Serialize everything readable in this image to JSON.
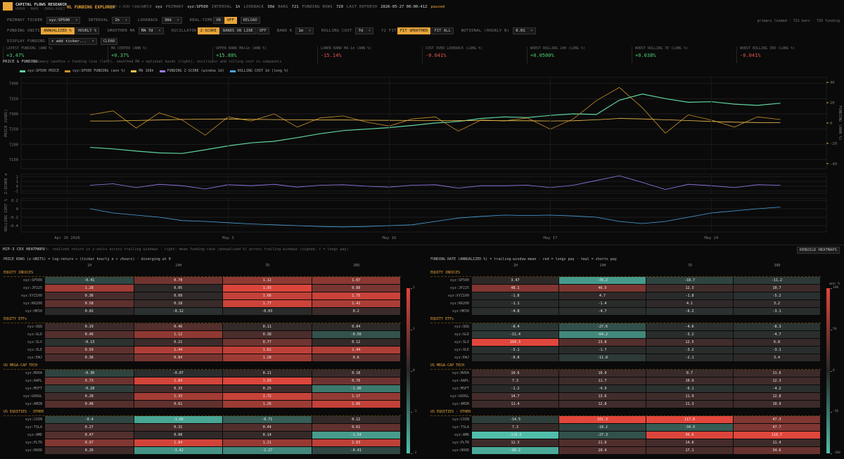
{
  "header": {
    "brand": "CAPITAL FLOWS RESEARCH",
    "tagline": "HYPER · MAPS · CROSS-ASSET",
    "app": "HL FUNDING EXPLORER",
    "app_note": "HIP-3 PERP FUNDING",
    "status": [
      {
        "label": "PCX",
        "value": "xyz"
      },
      {
        "label": "PRIMARY",
        "value": "xyz:SP500"
      },
      {
        "label": "INTERVAL",
        "value": "1h"
      },
      {
        "label": "LOOKBACK",
        "value": "30d"
      },
      {
        "label": "BARS",
        "value": "721"
      },
      {
        "label": "FUNDING ROWS",
        "value": "720"
      },
      {
        "label": "LAST REFRESH",
        "value": "2026-05-27 00:00:41Z"
      }
    ],
    "state": "paused"
  },
  "controls": {
    "rows": [
      [
        {
          "label": "PRIMARY TICKER",
          "value": "xyz:SP500"
        },
        {
          "label": "INTERVAL",
          "value": "1h"
        },
        {
          "label": "LOOKBACK",
          "value": "30d"
        },
        {
          "label": "REAL-TIME",
          "toggle": [
            "ON",
            "OFF"
          ],
          "selected": 1
        },
        {
          "button": "RELOAD"
        }
      ],
      [
        {
          "label": "FUNDING UNITS",
          "toggle": [
            "ANNUALIZED %",
            "HOURLY %"
          ],
          "selected": 0
        },
        {
          "label": "SMOOTHER MA",
          "value": "MA 7d"
        },
        {
          "label": "OSCILLATOR",
          "toggle": [
            "Z-SCORE",
            "BANDS ON LINE",
            "OFF"
          ],
          "selected": 0
        },
        {
          "label": "BAND K",
          "value": "1σ"
        },
        {
          "label": "ROLLING COST",
          "value": "7d"
        },
        {
          "label": "Y2 FIT",
          "toggle": [
            "FIT SMOOTHED",
            "FIT ALL"
          ],
          "selected": 0
        },
        {
          "label": "NOTIONAL (HOURLY N)",
          "value": "0.01"
        }
      ],
      [
        {
          "label": "DISPLAY FUNDING",
          "value": "+ add ticker..."
        },
        {
          "button": "CLEAR"
        }
      ]
    ],
    "status_right": "primary loaded · 721 bars · 720 funding"
  },
  "stats": [
    {
      "label": "LATEST FUNDING (ANN %)",
      "value": "+3.47%"
    },
    {
      "label": "MA CENTER (ANN %)",
      "value": "+0.37%"
    },
    {
      "label": "UPPER BAND MA+1σ (ANN %)",
      "value": "+15.88%"
    },
    {
      "label": "LOWER BAND MA-1σ (ANN %)",
      "value": "-15.14%"
    },
    {
      "label": "COST OVER LOOKBACK (LONG %)",
      "value": "-0.041%"
    },
    {
      "label": "WORST ROLLING 24H (LONG %)",
      "value": "+0.0500%"
    },
    {
      "label": "WORST ROLLING 7D (LONG %)",
      "value": "+0.038%"
    },
    {
      "label": "WORST ROLLING 30D (LONG %)",
      "value": "-0.041%"
    }
  ],
  "chart_section": {
    "title": "PRICE & FUNDING",
    "description": "primary candles + funding line (left), smoothed MA + optional bands (right), oscillator and rolling cost in subpanels",
    "legend": [
      "xyz:SP500 PRICE",
      "xyz:SP500 FUNDING (ann %)",
      "MA 168h",
      "FUNDING Z-SCORE (window 1d)",
      "ROLLING COST 1d (long %)"
    ]
  },
  "chart_data": [
    {
      "type": "line",
      "ylabel": "PRICE (USDC)",
      "y2label": "FUNDING (ANN %)",
      "x": [
        "2026-04-27",
        "2026-04-28",
        "2026-04-29",
        "2026-04-30",
        "2026-05-01",
        "2026-05-02",
        "2026-05-03",
        "2026-05-04",
        "2026-05-05",
        "2026-05-06",
        "2026-05-07",
        "2026-05-08",
        "2026-05-09",
        "2026-05-10",
        "2026-05-11",
        "2026-05-12",
        "2026-05-13",
        "2026-05-14",
        "2026-05-15",
        "2026-05-16",
        "2026-05-17",
        "2026-05-18",
        "2026-05-19",
        "2026-05-20",
        "2026-05-21",
        "2026-05-22",
        "2026-05-23",
        "2026-05-24",
        "2026-05-25",
        "2026-05-26",
        "2026-05-27"
      ],
      "xlim": [
        "2026-04-24",
        "2026-05-29"
      ],
      "ylim": [
        7120,
        7420
      ],
      "yticks": [
        7150,
        7200,
        7250,
        7300,
        7350,
        7400
      ],
      "y2lim": [
        -45,
        45
      ],
      "y2ticks": [
        -40,
        -20,
        0,
        20,
        40
      ],
      "grid": true,
      "series": [
        {
          "name": "xyz:SP500 PRICE",
          "color": "#5fd3a0",
          "values": [
            7190,
            7185,
            7178,
            7172,
            7170,
            7182,
            7195,
            7205,
            7210,
            7222,
            7235,
            7245,
            7250,
            7255,
            7262,
            7270,
            7275,
            7285,
            7290,
            7288,
            7295,
            7300,
            7298,
            7345,
            7365,
            7350,
            7338,
            7340,
            7332,
            7328,
            7335
          ]
        },
        {
          "name": "xyz:SP500 FUNDING (ann %)",
          "color": "#c8902a",
          "axis": "y2",
          "values": [
            8,
            12,
            -5,
            10,
            3,
            -12,
            6,
            2,
            9,
            -4,
            5,
            7,
            1,
            -3,
            4,
            6,
            -8,
            3,
            2,
            5,
            -6,
            4,
            22,
            35,
            15,
            -10,
            8,
            3,
            -4,
            6,
            3.47
          ]
        },
        {
          "name": "MA 168h",
          "color": "#f2c14e",
          "axis": "y2",
          "values": [
            2,
            2,
            2.5,
            3,
            3.5,
            3.8,
            4,
            3.6,
            3.4,
            3.2,
            3,
            3,
            2.8,
            2.6,
            2.5,
            2.4,
            2.3,
            2.4,
            2.3,
            2.2,
            2,
            2.2,
            3.2,
            4.5,
            4,
            3.2,
            2.4,
            1.5,
            0.8,
            0.5,
            0.37
          ]
        }
      ]
    },
    {
      "type": "line",
      "ylabel": "Z-SCORE σ",
      "x": [
        "2026-04-27",
        "2026-04-28",
        "2026-04-29",
        "2026-04-30",
        "2026-05-01",
        "2026-05-02",
        "2026-05-03",
        "2026-05-04",
        "2026-05-05",
        "2026-05-06",
        "2026-05-07",
        "2026-05-08",
        "2026-05-09",
        "2026-05-10",
        "2026-05-11",
        "2026-05-12",
        "2026-05-13",
        "2026-05-14",
        "2026-05-15",
        "2026-05-16",
        "2026-05-17",
        "2026-05-18",
        "2026-05-19",
        "2026-05-20",
        "2026-05-21",
        "2026-05-22",
        "2026-05-23",
        "2026-05-24",
        "2026-05-25",
        "2026-05-26",
        "2026-05-27"
      ],
      "xlim": [
        "2026-04-24",
        "2026-05-29"
      ],
      "ylim": [
        -1.5,
        2.5
      ],
      "yticks": [
        -1,
        0,
        1,
        2
      ],
      "grid": true,
      "series": [
        {
          "name": "FUNDING Z-SCORE (window 1d)",
          "color": "#9b7cf0",
          "values": [
            0.2,
            0.5,
            -0.3,
            0.4,
            0.1,
            -0.6,
            0.3,
            0.1,
            0.4,
            -0.2,
            0.2,
            0.3,
            0,
            -0.2,
            0.2,
            0.3,
            -0.4,
            0.1,
            0.1,
            0.2,
            -0.3,
            0.2,
            1.2,
            2.2,
            0.8,
            -0.7,
            0.4,
            0.1,
            -0.3,
            0.3,
            0.2
          ]
        }
      ]
    },
    {
      "type": "line",
      "ylabel": "ROLLING COST %",
      "x": [
        "2026-04-27",
        "2026-04-28",
        "2026-04-29",
        "2026-04-30",
        "2026-05-01",
        "2026-05-02",
        "2026-05-03",
        "2026-05-04",
        "2026-05-05",
        "2026-05-06",
        "2026-05-07",
        "2026-05-08",
        "2026-05-09",
        "2026-05-10",
        "2026-05-11",
        "2026-05-12",
        "2026-05-13",
        "2026-05-14",
        "2026-05-15",
        "2026-05-16",
        "2026-05-17",
        "2026-05-18",
        "2026-05-19",
        "2026-05-20",
        "2026-05-21",
        "2026-05-22",
        "2026-05-23",
        "2026-05-24",
        "2026-05-25",
        "2026-05-26",
        "2026-05-27"
      ],
      "xlim": [
        "2026-04-24",
        "2026-05-29"
      ],
      "ylim": [
        -0.55,
        0.25
      ],
      "yticks": [
        -0.4,
        -0.2,
        0,
        0.2
      ],
      "grid": true,
      "xticks": [
        {
          "value": "2026-04-26",
          "label": "Apr 26 2026"
        },
        {
          "value": "2026-05-03",
          "label": "May 3"
        },
        {
          "value": "2026-05-10",
          "label": "May 10"
        },
        {
          "value": "2026-05-17",
          "label": "May 17"
        },
        {
          "value": "2026-05-24",
          "label": "May 24"
        }
      ],
      "series": [
        {
          "name": "ROLLING COST 1d (long %)",
          "color": "#4aa3df",
          "values": [
            0,
            -0.1,
            -0.15,
            -0.2,
            -0.28,
            -0.3,
            -0.33,
            -0.36,
            -0.38,
            -0.4,
            -0.42,
            -0.43,
            -0.42,
            -0.4,
            -0.38,
            -0.3,
            -0.22,
            -0.18,
            -0.15,
            -0.16,
            -0.15,
            -0.17,
            -0.2,
            -0.3,
            -0.35,
            -0.3,
            -0.2,
            -0.1,
            -0.05,
            0,
            0.04
          ]
        }
      ]
    }
  ],
  "heatmap_section": {
    "title": "HIP-3 CEX HEATMAPS",
    "description": "left: realized return in z-units across trailing windows · right: mean funding rate (annualized %) across trailing windows (signed: + = longs pay)",
    "button": "REBUILD HEATMAPS"
  },
  "heatmaps": [
    {
      "title": "PRICE ROWS (z-UNITS) = log-return ÷ (ticker hourly σ × √hours) · diverging at 0",
      "columns": [
        "1H",
        "24H",
        "7D",
        "30D"
      ],
      "colorbar": {
        "ticks": [
          -2,
          -1,
          0,
          1,
          2
        ]
      },
      "groups": [
        {
          "name": "EQUITY INDICES",
          "rows": [
            {
              "ticker": "xyz:SP500",
              "values": [
                -0.41,
                0.78,
                1.12,
                1.07
              ]
            },
            {
              "ticker": "xyz:JP225",
              "values": [
                1.28,
                0.05,
                1.93,
                0.88
              ]
            },
            {
              "ticker": "xyz:XYZ100",
              "values": [
                0.36,
                0.09,
                1.66,
                1.75
              ]
            },
            {
              "ticker": "xyz:KR200",
              "values": [
                0.58,
                0.18,
                1.77,
                1.42
              ]
            },
            {
              "ticker": "xyz:HK50",
              "values": [
                0.02,
                -0.12,
                -0.03,
                0.2
              ]
            }
          ]
        },
        {
          "name": "EQUITY ETFs",
          "rows": [
            {
              "ticker": "xyz:QQQ",
              "values": [
                0.19,
                0.46,
                0.11,
                0.04
              ]
            },
            {
              "ticker": "xyz:GLD",
              "values": [
                0.46,
                1.12,
                0.38,
                -0.56
              ]
            },
            {
              "ticker": "xyz:SLV",
              "values": [
                -0.13,
                0.21,
                0.77,
                0.12
              ]
            },
            {
              "ticker": "xyz:XLE",
              "values": [
                0.59,
                1.44,
                1.62,
                1.44
              ]
            },
            {
              "ticker": "xyz:EWJ",
              "values": [
                0.36,
                0.84,
                1.28,
                0.6
              ]
            }
          ]
        },
        {
          "name": "US MEGA-CAP TECH",
          "rows": [
            {
              "ticker": "xyz:NVDA",
              "values": [
                -0.36,
                -0.07,
                0.11,
                0.18
              ]
            },
            {
              "ticker": "xyz:AAPL",
              "values": [
                0.73,
                1.84,
                1.93,
                0.76
              ]
            },
            {
              "ticker": "xyz:MSFT",
              "values": [
                -0.28,
                0.33,
                0.25,
                -1.06
              ]
            },
            {
              "ticker": "xyz:GOOGL",
              "values": [
                0.28,
                1.33,
                1.72,
                1.17
              ]
            },
            {
              "ticker": "xyz:AMZN",
              "values": [
                0.48,
                0.61,
                1.26,
                1.66
              ]
            }
          ]
        },
        {
          "name": "US EQUITIES · OTHER",
          "rows": [
            {
              "ticker": "xyz:COIN",
              "values": [
                -0.4,
                -1.66,
                -0.71,
                0.11
              ]
            },
            {
              "ticker": "xyz:TSLA",
              "values": [
                0.27,
                0.31,
                0.44,
                0.61
              ]
            },
            {
              "ticker": "xyz:AMD",
              "values": [
                0.47,
                0.08,
                0.14,
                -1.54
              ]
            },
            {
              "ticker": "xyz:PLTR",
              "values": [
                0.97,
                1.84,
                1.21,
                1.63
              ]
            },
            {
              "ticker": "xyz:HOOD",
              "values": [
                0.26,
                -1.42,
                -1.27,
                -0.41
              ]
            }
          ]
        }
      ]
    },
    {
      "title": "FUNDING RATE (ANNUALIZED %) = trailing-window mean · red = longs pay · teal = shorts pay",
      "columns": [
        "1H",
        "24H",
        "7D",
        "30D"
      ],
      "colorbar": {
        "label": "ann %",
        "ticks": [
          -100,
          -50,
          0,
          50,
          100
        ]
      },
      "groups": [
        {
          "name": "EQUITY INDICES",
          "rows": [
            {
              "ticker": "xyz:SP500",
              "values": [
                3.47,
                -76.2,
                -18.7,
                -11.2
              ]
            },
            {
              "ticker": "xyz:JP225",
              "values": [
                48.1,
                46.5,
                12.3,
                10.7
              ]
            },
            {
              "ticker": "xyz:XYZ100",
              "values": [
                -1.8,
                4.7,
                -1.8,
                -5.2
              ]
            },
            {
              "ticker": "xyz:KR200",
              "values": [
                -1.1,
                -1.4,
                4.1,
                3.2
              ]
            },
            {
              "ticker": "xyz:HK50",
              "values": [
                -4.8,
                -4.7,
                -6.2,
                -3.1
              ]
            }
          ]
        },
        {
          "name": "EQUITY ETFs",
          "rows": [
            {
              "ticker": "xyz:QQQ",
              "values": [
                -8.4,
                -27.6,
                -4.6,
                -8.3
              ]
            },
            {
              "ticker": "xyz:GLD",
              "values": [
                -11.4,
                -64.2,
                -3.2,
                -4.7
              ]
            },
            {
              "ticker": "xyz:SLV",
              "values": [
                104.3,
                23.8,
                12.5,
                6.8
              ]
            },
            {
              "ticker": "xyz:XLE",
              "values": [
                -5.1,
                -1.7,
                -3.2,
                -3.1
              ]
            },
            {
              "ticker": "xyz:EWJ",
              "values": [
                -0.8,
                -11.8,
                -2.1,
                3.4
              ]
            }
          ]
        },
        {
          "name": "US MEGA-CAP TECH",
          "rows": [
            {
              "ticker": "xyz:NVDA",
              "values": [
                10.6,
                10.9,
                8.7,
                11.6
              ]
            },
            {
              "ticker": "xyz:AAPL",
              "values": [
                7.3,
                11.7,
                10.9,
                12.3
              ]
            },
            {
              "ticker": "xyz:MSFT",
              "values": [
                -1.2,
                -4.9,
                -6.1,
                -4.2
              ]
            },
            {
              "ticker": "xyz:GOOGL",
              "values": [
                14.7,
                13.6,
                11.9,
                12.8
              ]
            },
            {
              "ticker": "xyz:AMZN",
              "values": [
                11.4,
                12.8,
                11.3,
                10.9
              ]
            }
          ]
        },
        {
          "name": "US EQUITIES · OTHER",
          "rows": [
            {
              "ticker": "xyz:COIN",
              "values": [
                -14.5,
                101.3,
                117.8,
                47.3
              ]
            },
            {
              "ticker": "xyz:TSLA",
              "values": [
                7.3,
                -18.2,
                -34.9,
                47.7
              ]
            },
            {
              "ticker": "xyz:AMD",
              "values": [
                -116.5,
                -27.3,
                96.6,
                118.7
              ]
            },
            {
              "ticker": "xyz:PLTR",
              "values": [
                12.3,
                21.6,
                14.8,
                11.4
              ]
            },
            {
              "ticker": "xyz:HOOD",
              "values": [
                -86.2,
                20.4,
                17.1,
                34.6
              ]
            }
          ]
        }
      ]
    }
  ]
}
